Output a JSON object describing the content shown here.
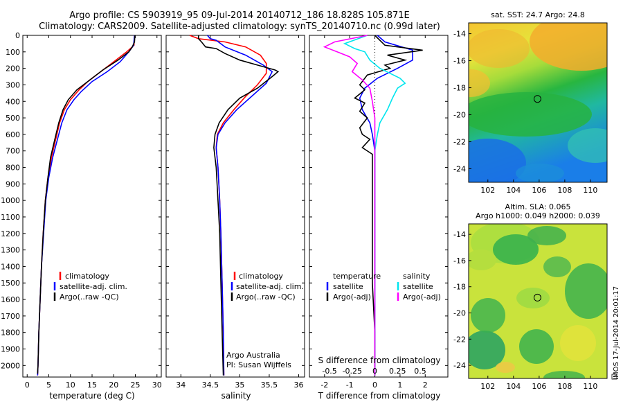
{
  "header": {
    "line1": "Argo profile: CS 5903919_95 09-Jul-2014 20140712_186 18.828S 105.871E",
    "line2": "Climatology: CARS2009. Satellite-adjusted climatology: synTS_20140710.nc (0.99d later)"
  },
  "colors": {
    "clim": "#ff0000",
    "sat": "#0000ff",
    "argo": "#000000",
    "sat_s": "#00e5ee",
    "argo_s": "#ff00ff"
  },
  "chart_data": [
    {
      "type": "line",
      "name": "temperature",
      "xlabel": "temperature (deg C)",
      "ylabel": "",
      "xlim": [
        -1,
        31
      ],
      "ylim": [
        2070,
        0
      ],
      "xticks": [
        "0",
        "5",
        "10",
        "15",
        "20",
        "25",
        "30"
      ],
      "xtick_values": [
        0,
        5,
        10,
        15,
        20,
        25,
        30
      ],
      "yticks": [
        "0",
        "100",
        "200",
        "300",
        "400",
        "500",
        "600",
        "700",
        "800",
        "900",
        "1000",
        "1100",
        "1200",
        "1300",
        "1400",
        "1500",
        "1600",
        "1700",
        "1800",
        "1900",
        "2000"
      ],
      "ytick_values": [
        0,
        100,
        200,
        300,
        400,
        500,
        600,
        700,
        800,
        900,
        1000,
        1100,
        1200,
        1300,
        1400,
        1500,
        1600,
        1700,
        1800,
        1900,
        2000
      ],
      "legend": [
        "climatology",
        "satellite-adj. clim.",
        "Argo(..raw -QC)"
      ],
      "series": [
        {
          "name": "climatology",
          "color": "clim",
          "points": [
            [
              24.8,
              0
            ],
            [
              24.7,
              60
            ],
            [
              23,
              100
            ],
            [
              20,
              160
            ],
            [
              17,
              220
            ],
            [
              14,
              280
            ],
            [
              12,
              330
            ],
            [
              10,
              390
            ],
            [
              8.6,
              450
            ],
            [
              7.5,
              530
            ],
            [
              6.6,
              630
            ],
            [
              5.6,
              740
            ],
            [
              4.8,
              860
            ],
            [
              4.2,
              1000
            ],
            [
              3.7,
              1200
            ],
            [
              3.3,
              1400
            ],
            [
              3.0,
              1600
            ],
            [
              2.7,
              1800
            ],
            [
              2.5,
              2000
            ],
            [
              2.4,
              2060
            ]
          ]
        },
        {
          "name": "satellite-adj. clim.",
          "color": "sat",
          "points": [
            [
              24.8,
              0
            ],
            [
              24.6,
              60
            ],
            [
              23.5,
              100
            ],
            [
              21.5,
              160
            ],
            [
              18.5,
              220
            ],
            [
              15,
              280
            ],
            [
              12.5,
              340
            ],
            [
              10.8,
              390
            ],
            [
              9.2,
              450
            ],
            [
              8,
              530
            ],
            [
              7,
              630
            ],
            [
              5.9,
              740
            ],
            [
              5,
              860
            ],
            [
              4.3,
              1000
            ],
            [
              3.8,
              1200
            ],
            [
              3.3,
              1400
            ],
            [
              3.0,
              1600
            ],
            [
              2.7,
              1800
            ],
            [
              2.5,
              2000
            ],
            [
              2.4,
              2060
            ]
          ]
        },
        {
          "name": "Argo(..raw -QC)",
          "color": "argo",
          "points": [
            [
              24.9,
              0
            ],
            [
              24.8,
              40
            ],
            [
              24.3,
              70
            ],
            [
              23.5,
              100
            ],
            [
              21,
              150
            ],
            [
              17.5,
              210
            ],
            [
              14.5,
              270
            ],
            [
              11.5,
              330
            ],
            [
              9.5,
              390
            ],
            [
              8.3,
              450
            ],
            [
              7.3,
              530
            ],
            [
              6.3,
              640
            ],
            [
              5.4,
              740
            ],
            [
              4.8,
              860
            ],
            [
              4.2,
              1000
            ],
            [
              3.7,
              1200
            ],
            [
              3.3,
              1400
            ],
            [
              3.0,
              1600
            ],
            [
              2.7,
              1800
            ],
            [
              2.5,
              2000
            ],
            [
              2.4,
              2050
            ]
          ]
        }
      ]
    },
    {
      "type": "line",
      "name": "salinity",
      "xlabel": "salinity",
      "xlim": [
        33.75,
        36.1
      ],
      "ylim": [
        2070,
        0
      ],
      "xticks": [
        "34",
        "34.5",
        "35",
        "35.5",
        "36"
      ],
      "xtick_values": [
        34,
        34.5,
        35,
        35.5,
        36
      ],
      "legend": [
        "climatology",
        "satellite-adj. clim.",
        "Argo(..raw -QC)"
      ],
      "annotation": [
        "Argo Australia",
        "PI: Susan Wijffels"
      ],
      "series": [
        {
          "name": "climatology",
          "color": "clim",
          "points": [
            [
              34.15,
              0
            ],
            [
              34.3,
              20
            ],
            [
              34.75,
              40
            ],
            [
              35.1,
              70
            ],
            [
              35.35,
              120
            ],
            [
              35.45,
              170
            ],
            [
              35.45,
              230
            ],
            [
              35.3,
              300
            ],
            [
              35.1,
              370
            ],
            [
              34.9,
              450
            ],
            [
              34.72,
              530
            ],
            [
              34.62,
              600
            ],
            [
              34.6,
              680
            ],
            [
              34.63,
              800
            ],
            [
              34.66,
              1000
            ],
            [
              34.68,
              1200
            ],
            [
              34.7,
              1500
            ],
            [
              34.72,
              1800
            ],
            [
              34.73,
              2060
            ]
          ]
        },
        {
          "name": "satellite-adj. clim.",
          "color": "sat",
          "points": [
            [
              34.45,
              0
            ],
            [
              34.5,
              20
            ],
            [
              34.6,
              30
            ],
            [
              34.75,
              70
            ],
            [
              35.1,
              120
            ],
            [
              35.4,
              180
            ],
            [
              35.55,
              220
            ],
            [
              35.45,
              290
            ],
            [
              35.2,
              370
            ],
            [
              34.95,
              450
            ],
            [
              34.75,
              530
            ],
            [
              34.63,
              600
            ],
            [
              34.6,
              680
            ],
            [
              34.63,
              800
            ],
            [
              34.66,
              1000
            ],
            [
              34.68,
              1200
            ],
            [
              34.7,
              1500
            ],
            [
              34.72,
              1800
            ],
            [
              34.73,
              2060
            ]
          ]
        },
        {
          "name": "Argo(..raw -QC)",
          "color": "argo",
          "points": [
            [
              34.3,
              0
            ],
            [
              34.3,
              20
            ],
            [
              34.35,
              40
            ],
            [
              34.42,
              70
            ],
            [
              34.6,
              80
            ],
            [
              34.75,
              110
            ],
            [
              35,
              150
            ],
            [
              35.3,
              180
            ],
            [
              35.6,
              210
            ],
            [
              35.65,
              220
            ],
            [
              35.55,
              250
            ],
            [
              35.3,
              320
            ],
            [
              35.0,
              380
            ],
            [
              34.8,
              450
            ],
            [
              34.65,
              530
            ],
            [
              34.58,
              600
            ],
            [
              34.56,
              680
            ],
            [
              34.6,
              800
            ],
            [
              34.63,
              1000
            ],
            [
              34.66,
              1200
            ],
            [
              34.68,
              1500
            ],
            [
              34.7,
              1800
            ],
            [
              34.72,
              2060
            ]
          ]
        }
      ]
    },
    {
      "type": "line",
      "name": "difference",
      "xlabel": "T difference from climatology",
      "xlabel_top": "S difference from climatology",
      "xlim": [
        -2.6,
        2.9
      ],
      "ylim": [
        2070,
        0
      ],
      "xticks": [
        "-2",
        "-1",
        "0",
        "1",
        "2"
      ],
      "xtick_values": [
        -2,
        -1,
        0,
        1,
        2
      ],
      "sticks": [
        "-0.5",
        "-0.25",
        "0",
        "0.25",
        "0.5"
      ],
      "stick_values": [
        -1.8,
        -0.9,
        0,
        0.9,
        1.8
      ],
      "legend_left_title": "temperature",
      "legend_right_title": "salinity",
      "legend_left": [
        "satellite",
        "Argo(-adj)"
      ],
      "legend_right": [
        "satellite",
        "Argo(-adj)"
      ],
      "series": [
        {
          "name": "T satellite",
          "color": "sat",
          "points": [
            [
              0.1,
              0
            ],
            [
              0.4,
              40
            ],
            [
              1.5,
              90
            ],
            [
              1.5,
              150
            ],
            [
              0.9,
              200
            ],
            [
              0.1,
              260
            ],
            [
              -0.4,
              320
            ],
            [
              -0.6,
              380
            ],
            [
              -0.5,
              450
            ],
            [
              -0.2,
              530
            ],
            [
              -0.1,
              600
            ],
            [
              0,
              700
            ],
            [
              0,
              900
            ],
            [
              0,
              1200
            ],
            [
              0,
              1500
            ],
            [
              0,
              1800
            ],
            [
              0,
              2060
            ]
          ]
        },
        {
          "name": "T Argo(-adj)",
          "color": "argo",
          "points": [
            [
              0,
              0
            ],
            [
              0.4,
              60
            ],
            [
              1.9,
              90
            ],
            [
              0.5,
              120
            ],
            [
              1.2,
              150
            ],
            [
              0.4,
              180
            ],
            [
              0.6,
              200
            ],
            [
              -0.3,
              240
            ],
            [
              -0.6,
              300
            ],
            [
              -0.4,
              330
            ],
            [
              -0.8,
              380
            ],
            [
              -0.4,
              410
            ],
            [
              -0.6,
              460
            ],
            [
              -0.3,
              500
            ],
            [
              -0.6,
              560
            ],
            [
              -0.5,
              600
            ],
            [
              -0.2,
              630
            ],
            [
              -0.5,
              680
            ],
            [
              -0.1,
              720
            ],
            [
              -0.1,
              800
            ],
            [
              -0.1,
              900
            ],
            [
              -0.1,
              1000
            ],
            [
              -0.1,
              1100
            ],
            [
              -0.1,
              1200
            ],
            [
              -0.1,
              1300
            ],
            [
              -0.1,
              1400
            ],
            [
              -0.1,
              1500
            ],
            [
              0,
              1800
            ],
            [
              0,
              2060
            ]
          ]
        },
        {
          "name": "S satellite",
          "color": "sat_s",
          "points": [
            [
              -0.3,
              0
            ],
            [
              -1.2,
              50
            ],
            [
              -0.8,
              80
            ],
            [
              -0.4,
              100
            ],
            [
              -0.2,
              150
            ],
            [
              0.2,
              200
            ],
            [
              1.0,
              260
            ],
            [
              1.2,
              290
            ],
            [
              0.9,
              320
            ],
            [
              0.7,
              380
            ],
            [
              0.5,
              450
            ],
            [
              0.2,
              530
            ],
            [
              0.1,
              600
            ],
            [
              0,
              700
            ],
            [
              0,
              900
            ],
            [
              0,
              1200
            ],
            [
              0,
              1500
            ],
            [
              0,
              1800
            ],
            [
              0,
              2060
            ]
          ]
        },
        {
          "name": "S Argo(-adj)",
          "color": "argo_s",
          "points": [
            [
              -0.3,
              0
            ],
            [
              -1.6,
              40
            ],
            [
              -2.0,
              70
            ],
            [
              -1.5,
              100
            ],
            [
              -1.0,
              130
            ],
            [
              -0.7,
              170
            ],
            [
              -0.9,
              220
            ],
            [
              -0.5,
              270
            ],
            [
              -0.2,
              320
            ],
            [
              -0.1,
              400
            ],
            [
              0,
              500
            ],
            [
              0,
              700
            ],
            [
              0,
              900
            ],
            [
              0,
              1200
            ],
            [
              0,
              1500
            ],
            [
              0,
              1800
            ],
            [
              0,
              2060
            ]
          ]
        }
      ]
    },
    {
      "type": "heatmap",
      "name": "sst_map",
      "title": "sat. SST: 24.7 Argo: 24.8",
      "xlim": [
        100.5,
        111.3
      ],
      "ylim": [
        -25,
        -13.2
      ],
      "xticks": [
        "102",
        "104",
        "106",
        "108",
        "110"
      ],
      "xtick_values": [
        102,
        104,
        106,
        108,
        110
      ],
      "yticks": [
        "-14",
        "-16",
        "-18",
        "-20",
        "-22",
        "-24"
      ],
      "ytick_values": [
        -14,
        -16,
        -18,
        -20,
        -22,
        -24
      ],
      "marker": [
        105.87,
        -18.83
      ]
    },
    {
      "type": "heatmap",
      "name": "sla_map",
      "title": "Altim. SLA: 0.065",
      "subtitle": "Argo h1000: 0.049 h2000: 0.039",
      "xlim": [
        100.5,
        111.3
      ],
      "ylim": [
        -25,
        -13.2
      ],
      "xticks": [
        "102",
        "104",
        "106",
        "108",
        "110"
      ],
      "xtick_values": [
        102,
        104,
        106,
        108,
        110
      ],
      "yticks": [
        "-14",
        "-16",
        "-18",
        "-20",
        "-22",
        "-24"
      ],
      "ytick_values": [
        -14,
        -16,
        -18,
        -20,
        -22,
        -24
      ],
      "marker": [
        105.87,
        -18.83
      ]
    }
  ],
  "credit": "IMOS 17-Jul-2014 20:01:17"
}
